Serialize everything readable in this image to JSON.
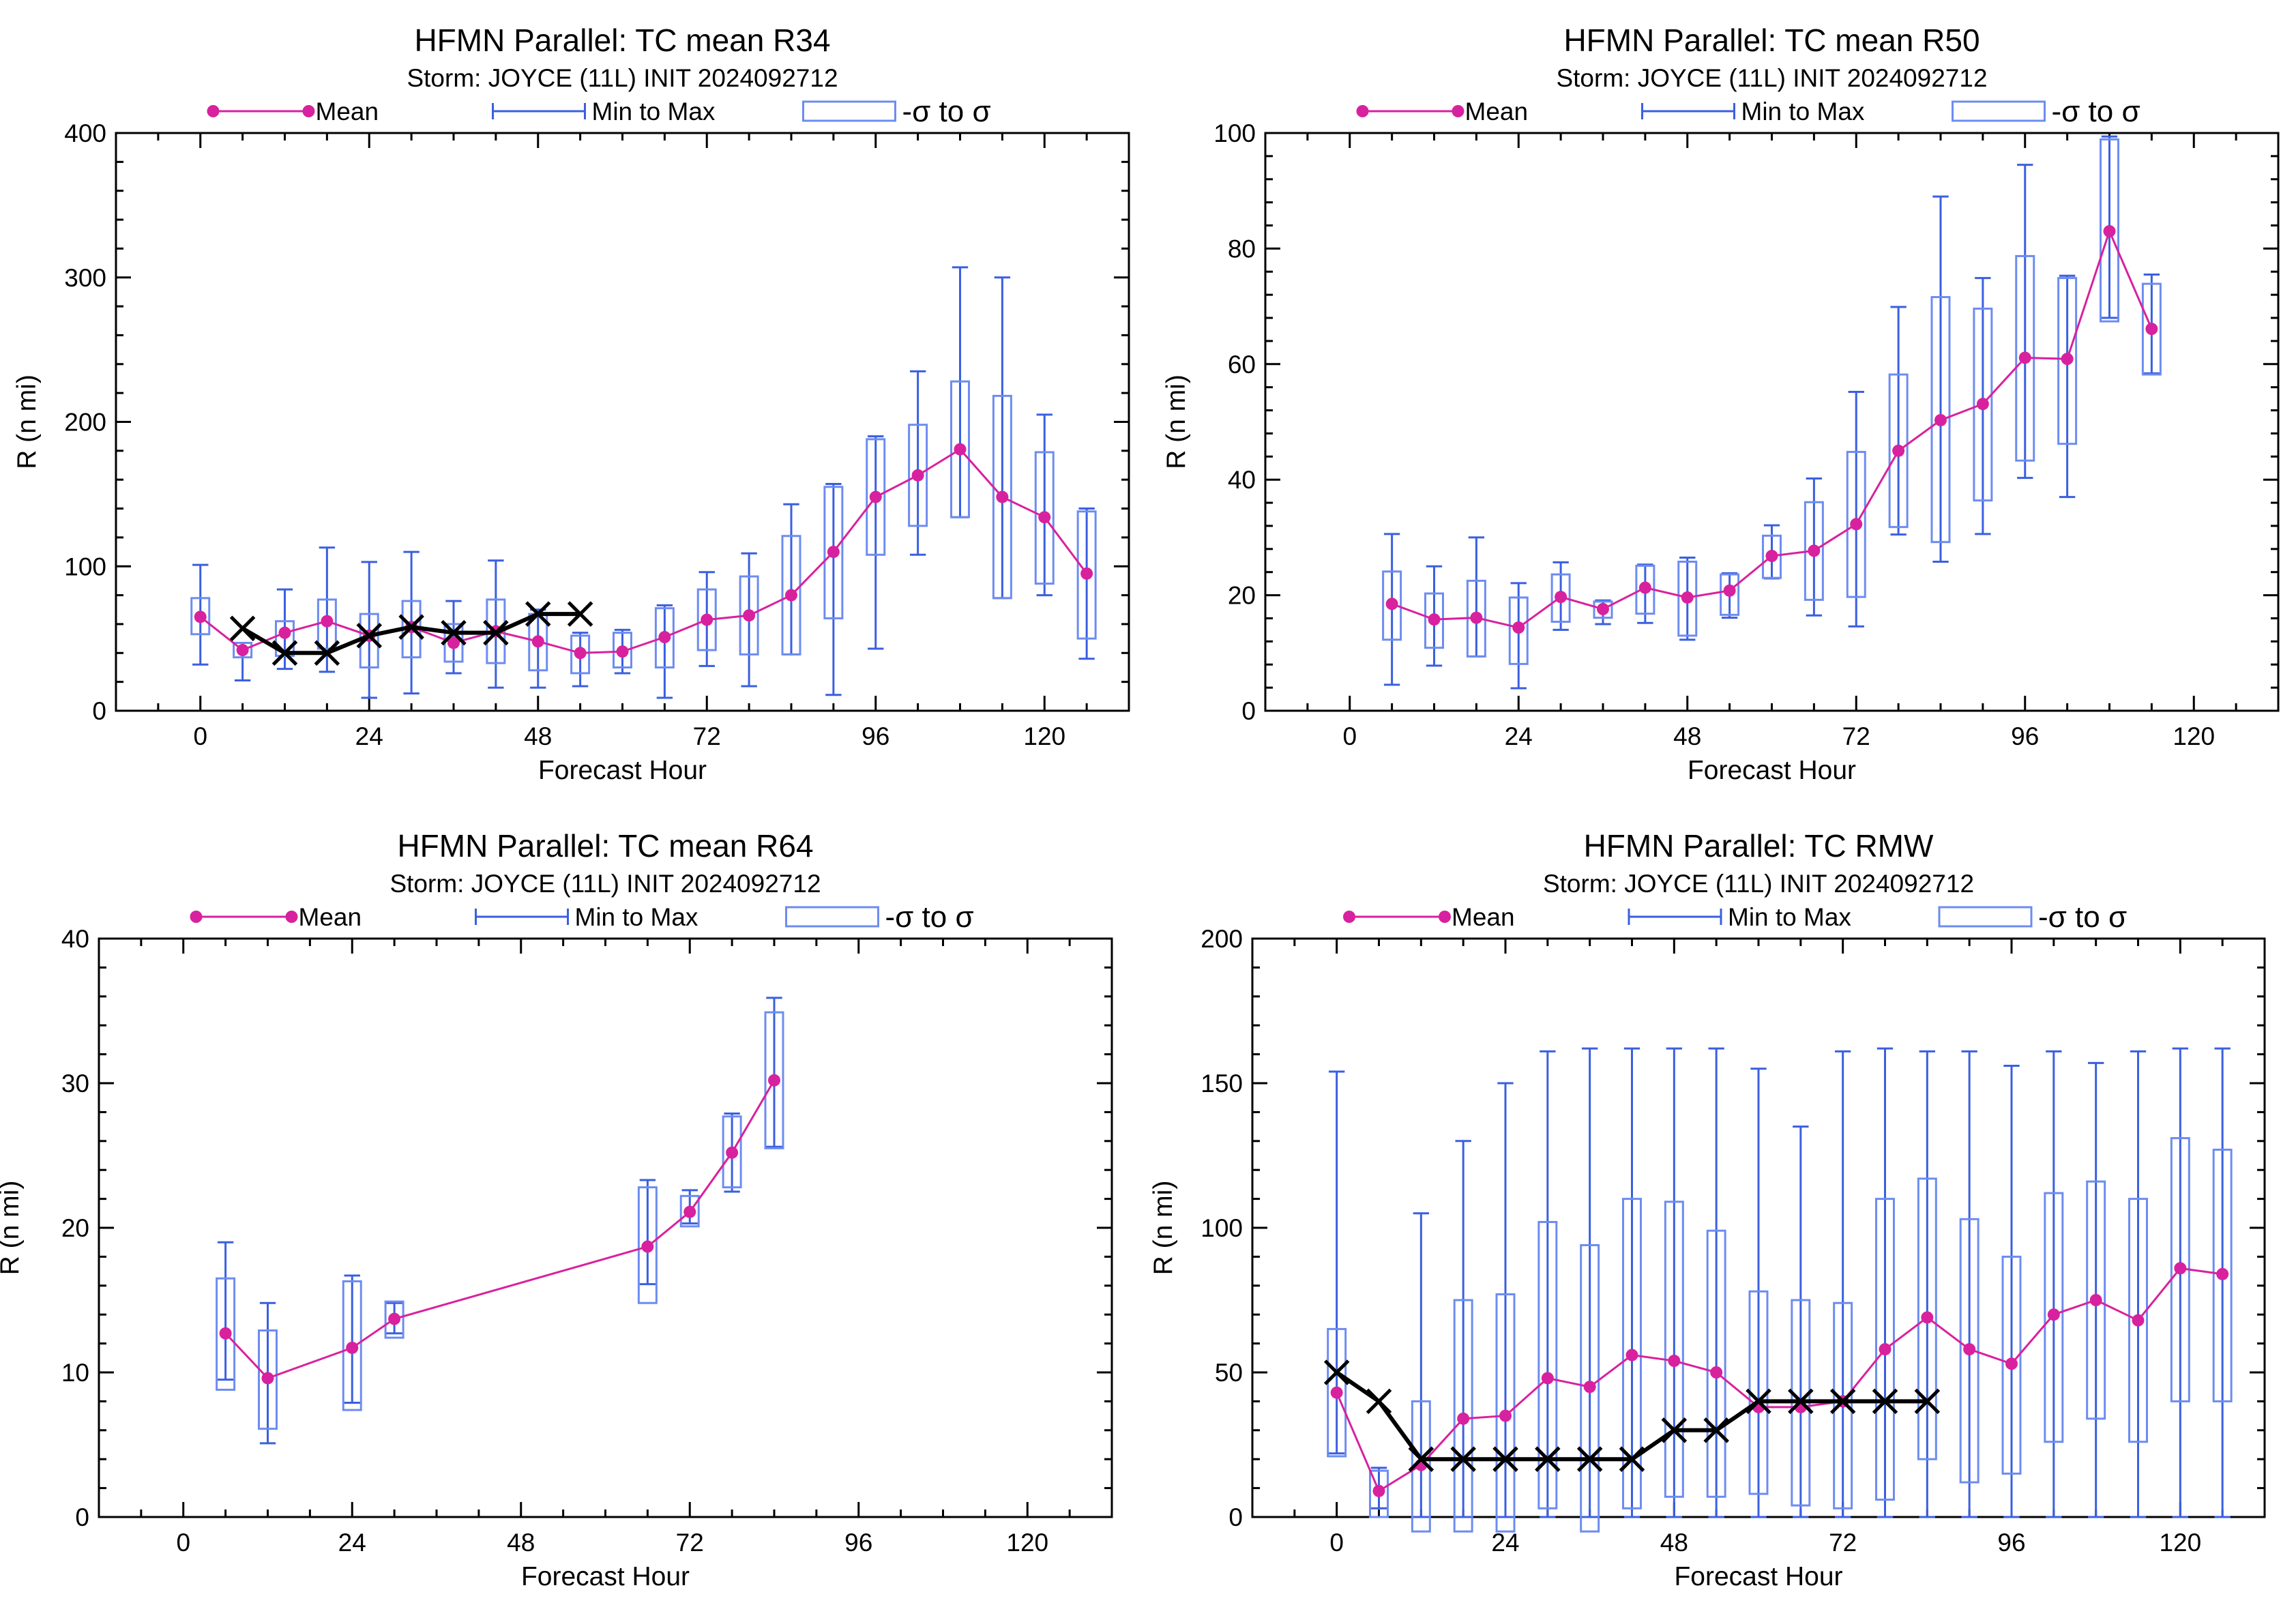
{
  "colors": {
    "mean": "#d8219e",
    "minmax": "#3a5fe0",
    "sigma": "#6d8cf0",
    "best_track": "#000000",
    "axis": "#000000"
  },
  "legend": {
    "mean_label": "Mean",
    "minmax_label": "Min to Max",
    "sigma_label": "-σ to σ"
  },
  "chart_data": [
    {
      "type": "box",
      "title": "HFMN Parallel: TC mean R34",
      "subtitle": "Storm: JOYCE (11L) INIT 2024092712",
      "xlabel": "Forecast Hour",
      "ylabel": "R (n mi)",
      "xlim": [
        -12,
        132
      ],
      "ylim": [
        0,
        400
      ],
      "xticks": [
        0,
        24,
        48,
        72,
        96,
        120
      ],
      "yticks": [
        0,
        100,
        200,
        300,
        400
      ],
      "hours": [
        0,
        6,
        12,
        18,
        24,
        30,
        36,
        42,
        48,
        54,
        60,
        66,
        72,
        78,
        84,
        90,
        96,
        102,
        108,
        114,
        120,
        126
      ],
      "mean": [
        65,
        42,
        54,
        62,
        52,
        58,
        47,
        55,
        48,
        40,
        41,
        51,
        63,
        66,
        80,
        110,
        148,
        163,
        181,
        148,
        134,
        95
      ],
      "min": [
        32,
        21,
        29,
        27,
        9,
        12,
        26,
        16,
        16,
        17,
        26,
        9,
        31,
        17,
        39,
        11,
        43,
        108,
        134,
        78,
        80,
        36
      ],
      "max": [
        101,
        47,
        84,
        113,
        103,
        110,
        76,
        104,
        70,
        54,
        56,
        73,
        96,
        109,
        143,
        157,
        190,
        235,
        307,
        300,
        205,
        140
      ],
      "sigma_low": [
        53,
        37,
        38,
        43,
        30,
        37,
        34,
        33,
        28,
        26,
        30,
        30,
        42,
        39,
        39,
        64,
        108,
        128,
        134,
        78,
        88,
        50
      ],
      "sigma_high": [
        78,
        47,
        62,
        77,
        67,
        76,
        60,
        77,
        67,
        52,
        54,
        71,
        84,
        93,
        121,
        155,
        188,
        198,
        228,
        218,
        179,
        138
      ],
      "best_track": {
        "hours": [
          6,
          12,
          18,
          24,
          30,
          36,
          42,
          48,
          54
        ],
        "values": [
          57,
          40,
          40,
          52,
          58,
          54,
          54,
          67,
          67
        ]
      }
    },
    {
      "type": "box",
      "title": "HFMN Parallel: TC mean R50",
      "subtitle": "Storm: JOYCE (11L) INIT 2024092712",
      "xlabel": "Forecast Hour",
      "ylabel": "R (n mi)",
      "xlim": [
        -12,
        132
      ],
      "ylim": [
        0,
        100
      ],
      "xticks": [
        0,
        24,
        48,
        72,
        96,
        120
      ],
      "yticks": [
        0,
        20,
        40,
        60,
        80,
        100
      ],
      "hours": [
        6,
        12,
        18,
        24,
        30,
        36,
        42,
        48,
        54,
        60,
        66,
        72,
        78,
        84,
        90,
        96,
        102,
        108,
        114
      ],
      "mean": [
        18.5,
        15.8,
        16.1,
        14.4,
        19.7,
        17.6,
        21.3,
        19.6,
        20.8,
        26.8,
        27.7,
        32.3,
        45,
        50.3,
        53.1,
        61.1,
        60.9,
        83,
        66.1
      ],
      "min": [
        4.5,
        7.8,
        9.4,
        3.9,
        14,
        15,
        15.2,
        12.3,
        16.1,
        22.9,
        16.5,
        14.6,
        30.5,
        25.8,
        30.6,
        40.3,
        37,
        68,
        58.4
      ],
      "max": [
        30.6,
        25,
        30,
        22.1,
        25.7,
        19.1,
        25.3,
        26.5,
        23.8,
        32.1,
        40.2,
        55.2,
        69.9,
        89,
        74.9,
        94.5,
        75.3,
        99.4,
        75.5
      ],
      "sigma_low": [
        12.3,
        10.9,
        9.4,
        8.1,
        15.4,
        16.1,
        16.8,
        13,
        16.6,
        23,
        19.2,
        19.7,
        31.8,
        29.2,
        36.4,
        43.3,
        46.2,
        67.4,
        58.2
      ],
      "sigma_high": [
        24.1,
        20.3,
        22.5,
        19.6,
        23.6,
        18.9,
        25.1,
        25.8,
        23.6,
        30.3,
        36.1,
        44.8,
        58.2,
        71.6,
        69.6,
        78.7,
        74.9,
        98.9,
        73.9
      ],
      "best_track": null
    },
    {
      "type": "box",
      "title": "HFMN Parallel: TC mean R64",
      "subtitle": "Storm: JOYCE (11L) INIT 2024092712",
      "xlabel": "Forecast Hour",
      "ylabel": "R (n mi)",
      "xlim": [
        -12,
        132
      ],
      "ylim": [
        0,
        40
      ],
      "xticks": [
        0,
        24,
        48,
        72,
        96,
        120
      ],
      "yticks": [
        0,
        10,
        20,
        30,
        40
      ],
      "hours": [
        6,
        12,
        24,
        30,
        66,
        72,
        78,
        84
      ],
      "mean": [
        12.7,
        9.6,
        11.7,
        13.7,
        18.7,
        21.1,
        25.2,
        30.2
      ],
      "min": [
        9.5,
        5.1,
        7.9,
        12.7,
        16.1,
        20.3,
        22.5,
        25.6
      ],
      "max": [
        19,
        14.8,
        16.7,
        14.8,
        23.3,
        22.6,
        27.9,
        35.9
      ],
      "sigma_low": [
        8.8,
        6.1,
        7.4,
        12.4,
        14.8,
        20.1,
        22.8,
        25.5
      ],
      "sigma_high": [
        16.5,
        12.9,
        16.3,
        14.9,
        22.8,
        22.2,
        27.7,
        34.9
      ],
      "best_track": null
    },
    {
      "type": "box",
      "title": "HFMN Parallel: TC RMW",
      "subtitle": "Storm: JOYCE (11L) INIT 2024092712",
      "xlabel": "Forecast Hour",
      "ylabel": "R (n mi)",
      "xlim": [
        -12,
        132
      ],
      "ylim": [
        0,
        200
      ],
      "xticks": [
        0,
        24,
        48,
        72,
        96,
        120
      ],
      "yticks": [
        0,
        50,
        100,
        150,
        200
      ],
      "hours": [
        0,
        6,
        12,
        18,
        24,
        30,
        36,
        42,
        48,
        54,
        60,
        66,
        72,
        78,
        84,
        90,
        96,
        102,
        108,
        114,
        120,
        126
      ],
      "mean": [
        43,
        9,
        18,
        34,
        35,
        48,
        45,
        56,
        54,
        50,
        38,
        38,
        40,
        58,
        69,
        58,
        53,
        70,
        75,
        68,
        86,
        84
      ],
      "min": [
        22,
        3,
        0,
        0,
        0,
        0,
        0,
        0,
        0,
        0,
        0,
        0,
        0,
        0,
        0,
        0,
        0,
        0,
        0,
        0,
        0,
        0
      ],
      "max": [
        154,
        17,
        105,
        130,
        150,
        161,
        162,
        162,
        162,
        162,
        155,
        135,
        161,
        162,
        161,
        161,
        156,
        161,
        157,
        161,
        162,
        162
      ],
      "sigma_low": [
        21,
        0,
        -5,
        -5,
        -5,
        3,
        -5,
        3,
        7,
        7,
        8,
        4,
        3,
        6,
        20,
        12,
        15,
        26,
        34,
        26,
        40,
        40
      ],
      "sigma_high": [
        65,
        16,
        40,
        75,
        77,
        102,
        94,
        110,
        109,
        99,
        78,
        75,
        74,
        110,
        117,
        103,
        90,
        112,
        116,
        110,
        131,
        127
      ],
      "best_track": {
        "hours": [
          0,
          6,
          12,
          18,
          24,
          30,
          36,
          42,
          48,
          54,
          60,
          66,
          72,
          78,
          84
        ],
        "values": [
          50,
          40,
          20,
          20,
          20,
          20,
          20,
          20,
          30,
          30,
          40,
          40,
          40,
          40,
          40
        ]
      }
    }
  ]
}
